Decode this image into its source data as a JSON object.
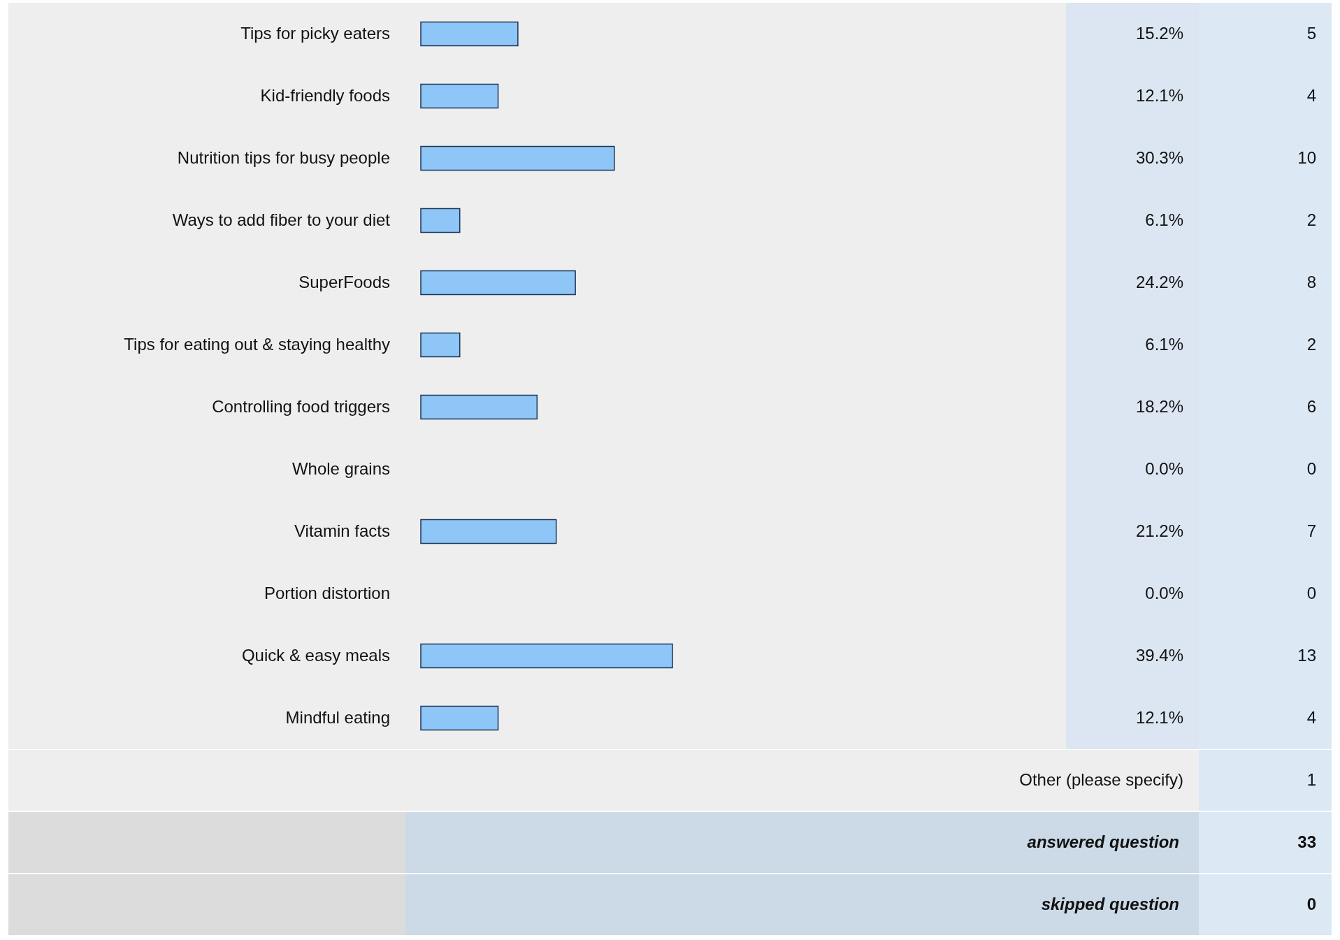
{
  "chart_data": {
    "type": "bar",
    "orientation": "horizontal",
    "color": "#8ec6f7",
    "categories": [
      "Tips for picky eaters",
      "Kid-friendly foods",
      "Nutrition tips for busy people",
      "Ways to add fiber to your diet",
      "SuperFoods",
      "Tips for eating out & staying healthy",
      "Controlling food triggers",
      "Whole grains",
      "Vitamin facts",
      "Portion distortion",
      "Quick & easy meals",
      "Mindful eating"
    ],
    "values": [
      15.2,
      12.1,
      30.3,
      6.1,
      24.2,
      6.1,
      18.2,
      0.0,
      21.2,
      0.0,
      39.4,
      12.1
    ],
    "value_labels": [
      "15.2%",
      "12.1%",
      "30.3%",
      "6.1%",
      "24.2%",
      "6.1%",
      "18.2%",
      "0.0%",
      "21.2%",
      "0.0%",
      "39.4%",
      "12.1%"
    ],
    "annotations": [
      "5",
      "4",
      "10",
      "2",
      "8",
      "2",
      "6",
      "0",
      "7",
      "0",
      "13",
      "4",
      "Other (please specify)",
      "1",
      "answered question",
      "33",
      "skipped question",
      "0"
    ]
  }
}
